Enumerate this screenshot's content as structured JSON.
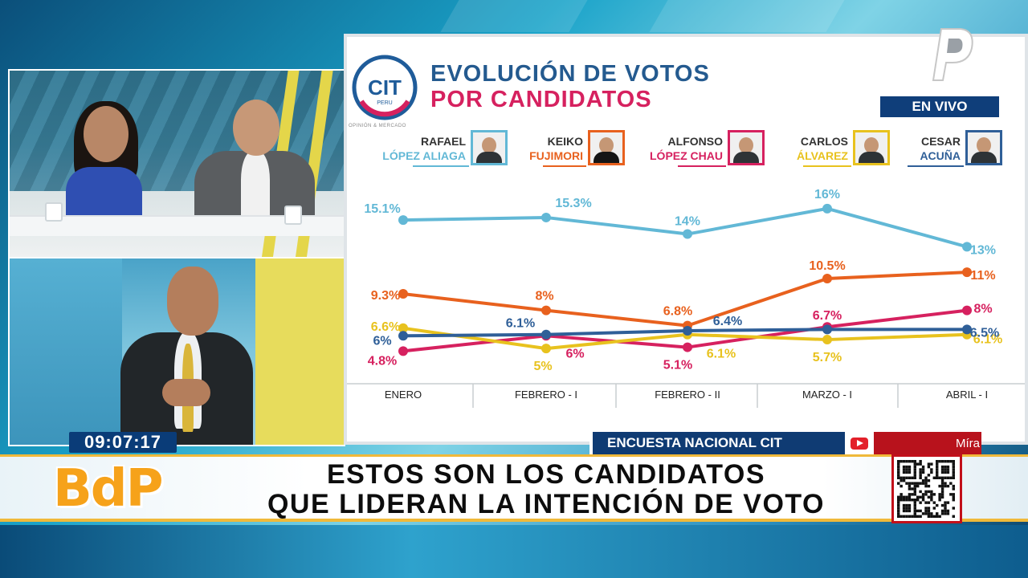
{
  "chart_data": {
    "type": "line",
    "title": "EVOLUCIÓN DE VOTOS",
    "subtitle": "POR CANDIDATOS",
    "categories": [
      "ENERO",
      "FEBRERO - I",
      "FEBRERO - II",
      "MARZO - I",
      "ABRIL - I"
    ],
    "ylim": [
      4,
      17
    ],
    "grid": false,
    "series": [
      {
        "name": "RAFAEL LÓPEZ ALIAGA",
        "first": "RAFAEL",
        "last": "LÓPEZ ALIAGA",
        "color": "#62b8d6",
        "values": [
          15.1,
          15.3,
          14,
          16,
          13
        ],
        "labels": [
          "15.1%",
          "15.3%",
          "14%",
          "16%",
          "13%"
        ]
      },
      {
        "name": "KEIKO FUJIMORI",
        "first": "KEIKO",
        "last": "FUJIMORI",
        "color": "#e8611e",
        "values": [
          9.3,
          8,
          6.8,
          10.5,
          11
        ],
        "labels": [
          "9.3%",
          "8%",
          "6.8%",
          "10.5%",
          "11%"
        ]
      },
      {
        "name": "ALFONSO LÓPEZ CHAU",
        "first": "ALFONSO",
        "last": "LÓPEZ CHAU",
        "color": "#d6215f",
        "values": [
          4.8,
          6,
          5.1,
          6.7,
          8
        ],
        "labels": [
          "4.8%",
          "6%",
          "5.1%",
          "6.7%",
          "8%"
        ]
      },
      {
        "name": "CARLOS ÁLVAREZ",
        "first": "CARLOS",
        "last": "ÁLVAREZ",
        "color": "#e8c21e",
        "values": [
          6.6,
          5,
          6.1,
          5.7,
          6.1
        ],
        "labels": [
          "6.6%",
          "5%",
          "6.1%",
          "5.7%",
          "6.1%"
        ]
      },
      {
        "name": "CESAR ACUÑA",
        "first": "CESAR",
        "last": "ACUÑA",
        "color": "#2f5f98",
        "values": [
          6,
          6.1,
          6.4,
          6.5,
          6.5
        ],
        "labels": [
          "6%",
          "6.1%",
          "6.4%",
          "",
          "6.5%"
        ]
      }
    ]
  },
  "logo": {
    "text": "CIT",
    "sub": "PERU",
    "tagline": "OPINIÓN & MERCADO"
  },
  "live_badge": "EN VIVO",
  "clock": "09:07:17",
  "ticker": {
    "label": "ENCUESTA NACIONAL CIT",
    "scroll": "Míra"
  },
  "headline": {
    "line1": "ESTOS SON LOS CANDIDATOS",
    "line2": "QUE LIDERAN LA INTENCIÓN DE VOTO"
  },
  "show_logo": "BdP",
  "colors": {
    "brand_orange": "#f6a21a",
    "navy": "#0f3b73",
    "red": "#b8121c"
  }
}
